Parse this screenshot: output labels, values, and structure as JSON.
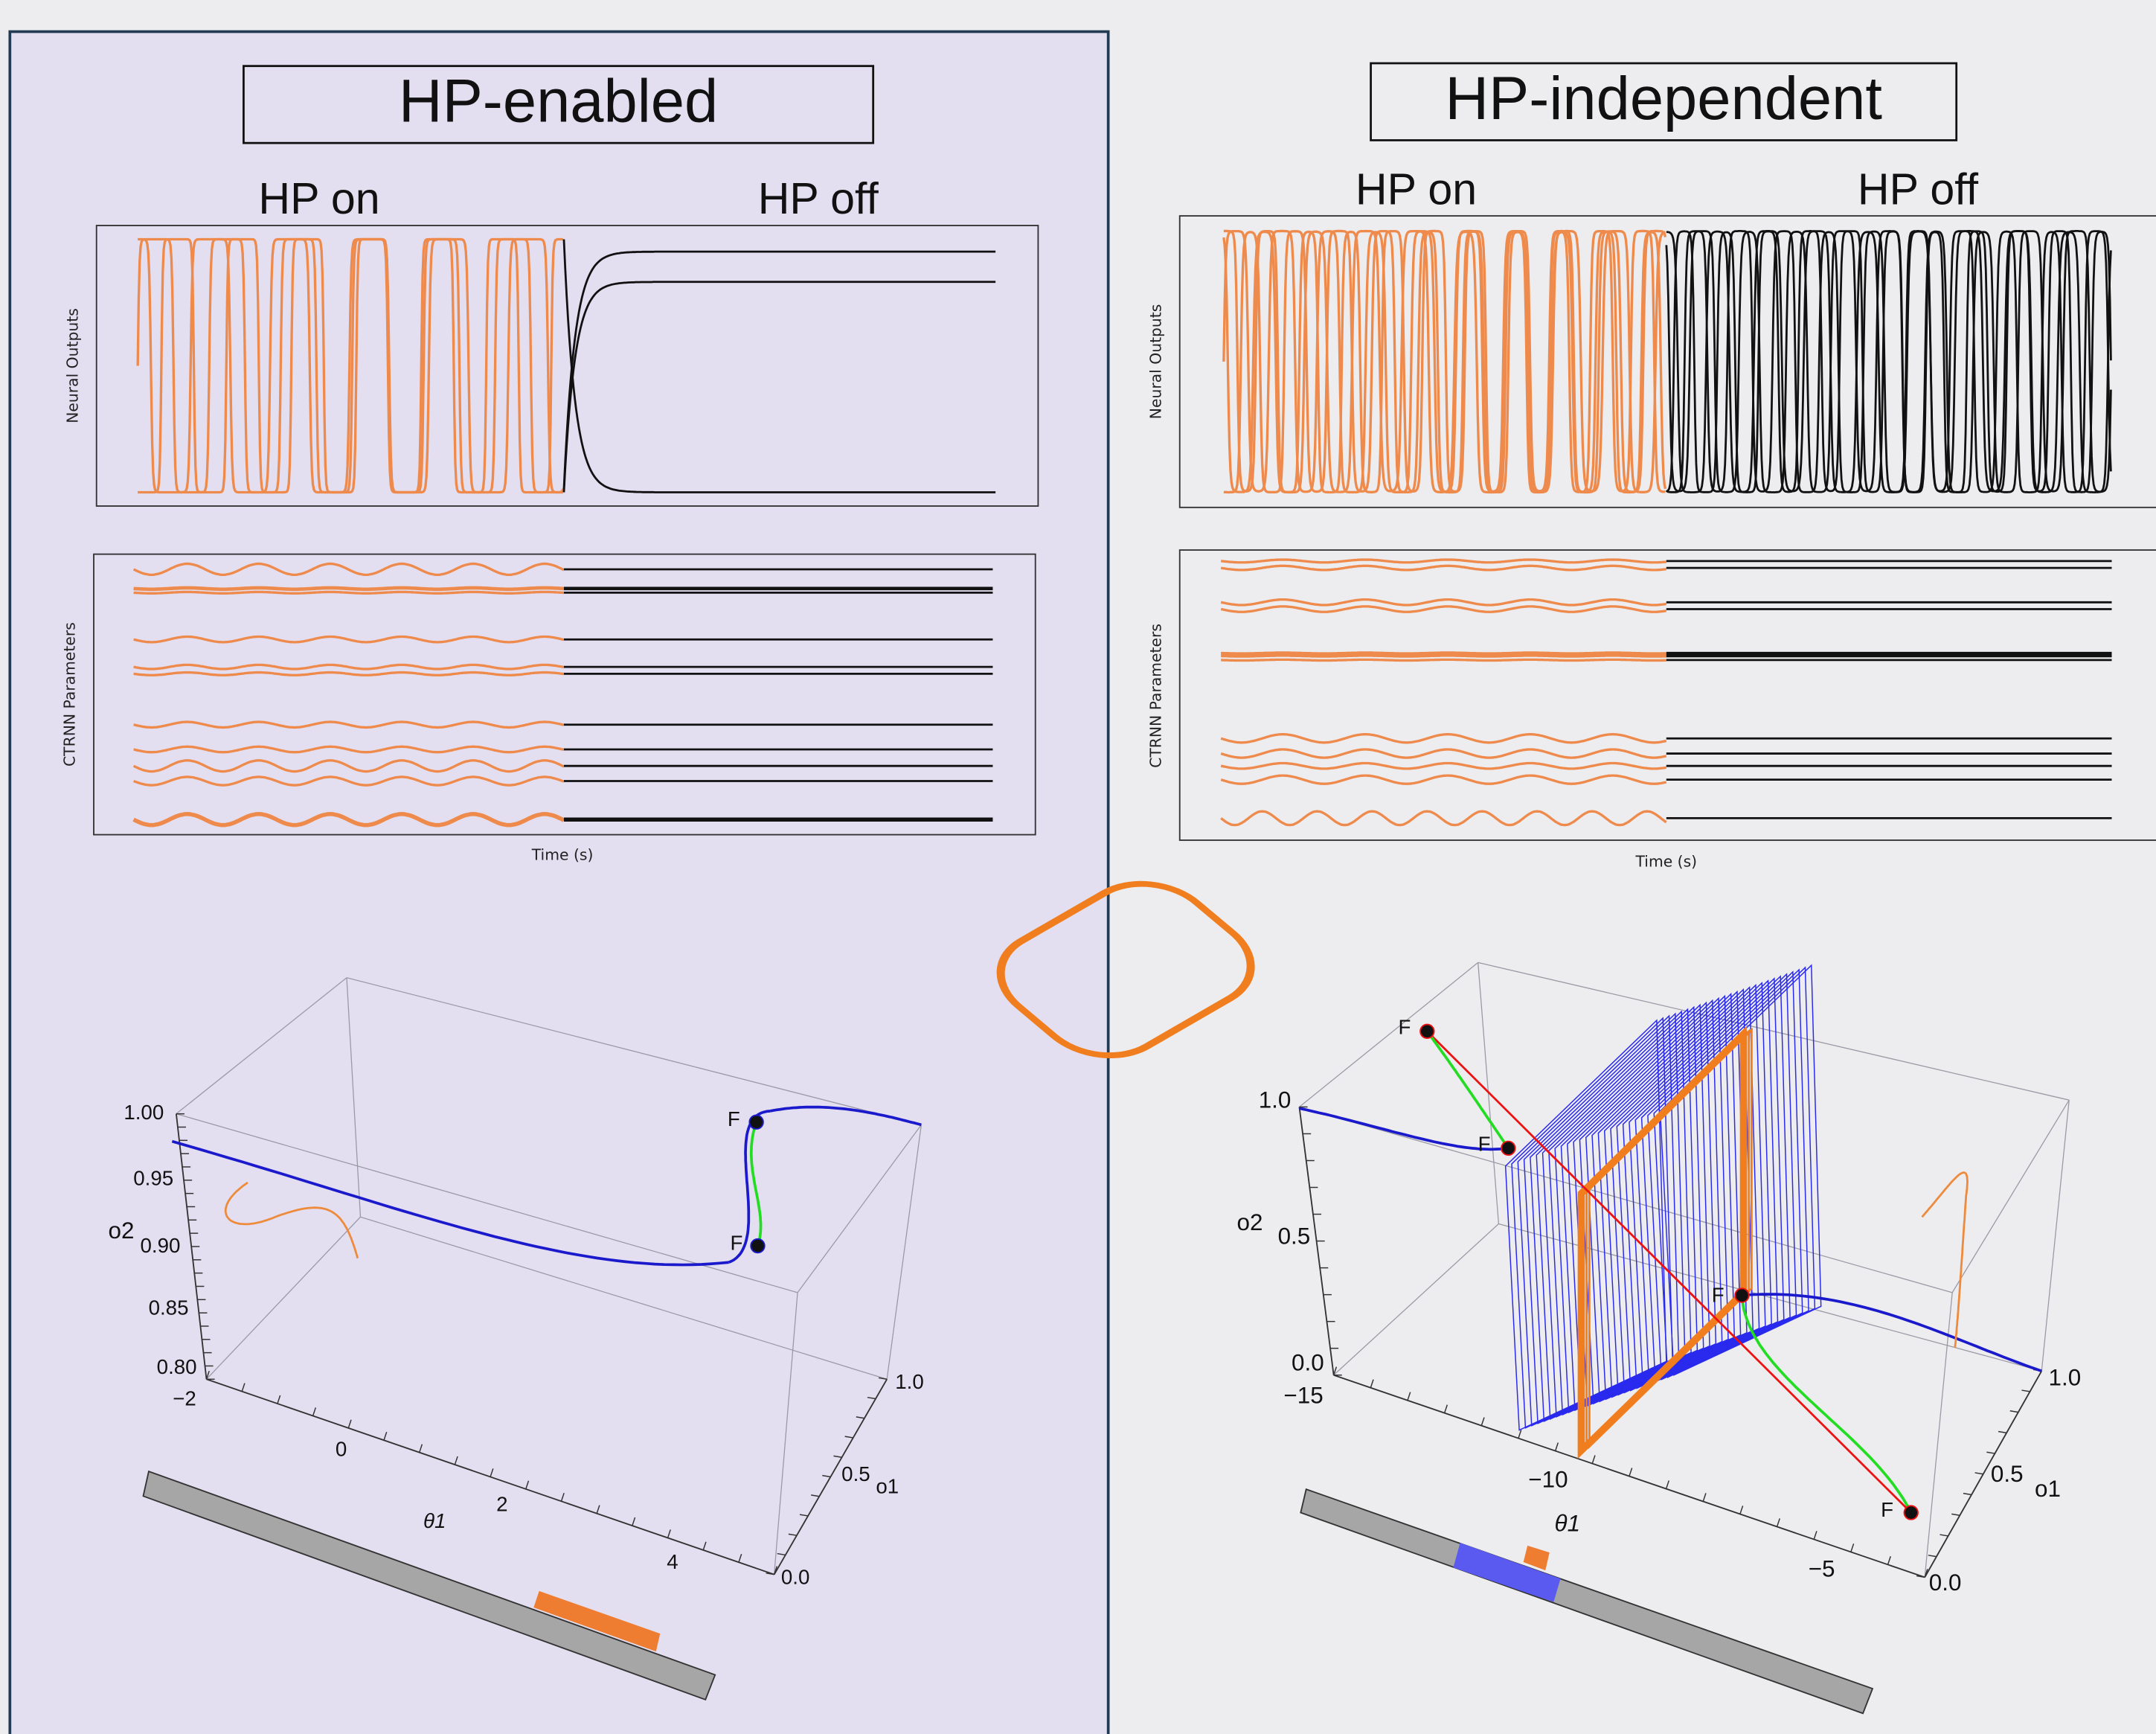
{
  "panels": [
    {
      "title": "HP-enabled",
      "phase_labels": [
        "HP on",
        "HP off"
      ],
      "outputs_ylabel": "Neural Outputs",
      "params_ylabel": "CTRNN Parameters",
      "xlabel": "Time (s)",
      "plot3d": {
        "z_label": "o2",
        "x_label": "θ1",
        "y_label": "o1",
        "z_ticks": [
          "1.00",
          "0.95",
          "0.90",
          "0.85",
          "0.80"
        ],
        "x_ticks": [
          "−2",
          "0",
          "2",
          "4"
        ],
        "y_ticks": [
          "1.0",
          "0.5",
          "0.0"
        ],
        "point_labels": [
          "F",
          "F"
        ]
      }
    },
    {
      "title": "HP-independent",
      "phase_labels": [
        "HP on",
        "HP off"
      ],
      "outputs_ylabel": "Neural Outputs",
      "params_ylabel": "CTRNN Parameters",
      "xlabel": "Time (s)",
      "plot3d": {
        "z_label": "o2",
        "x_label": "θ1",
        "y_label": "o1",
        "z_ticks": [
          "1.0",
          "0.5",
          "0.0"
        ],
        "x_ticks": [
          "−15",
          "−10",
          "−5"
        ],
        "y_ticks": [
          "1.0",
          "0.5",
          "0.0"
        ],
        "point_labels": [
          "F",
          "F",
          "F",
          "F"
        ]
      }
    }
  ]
}
